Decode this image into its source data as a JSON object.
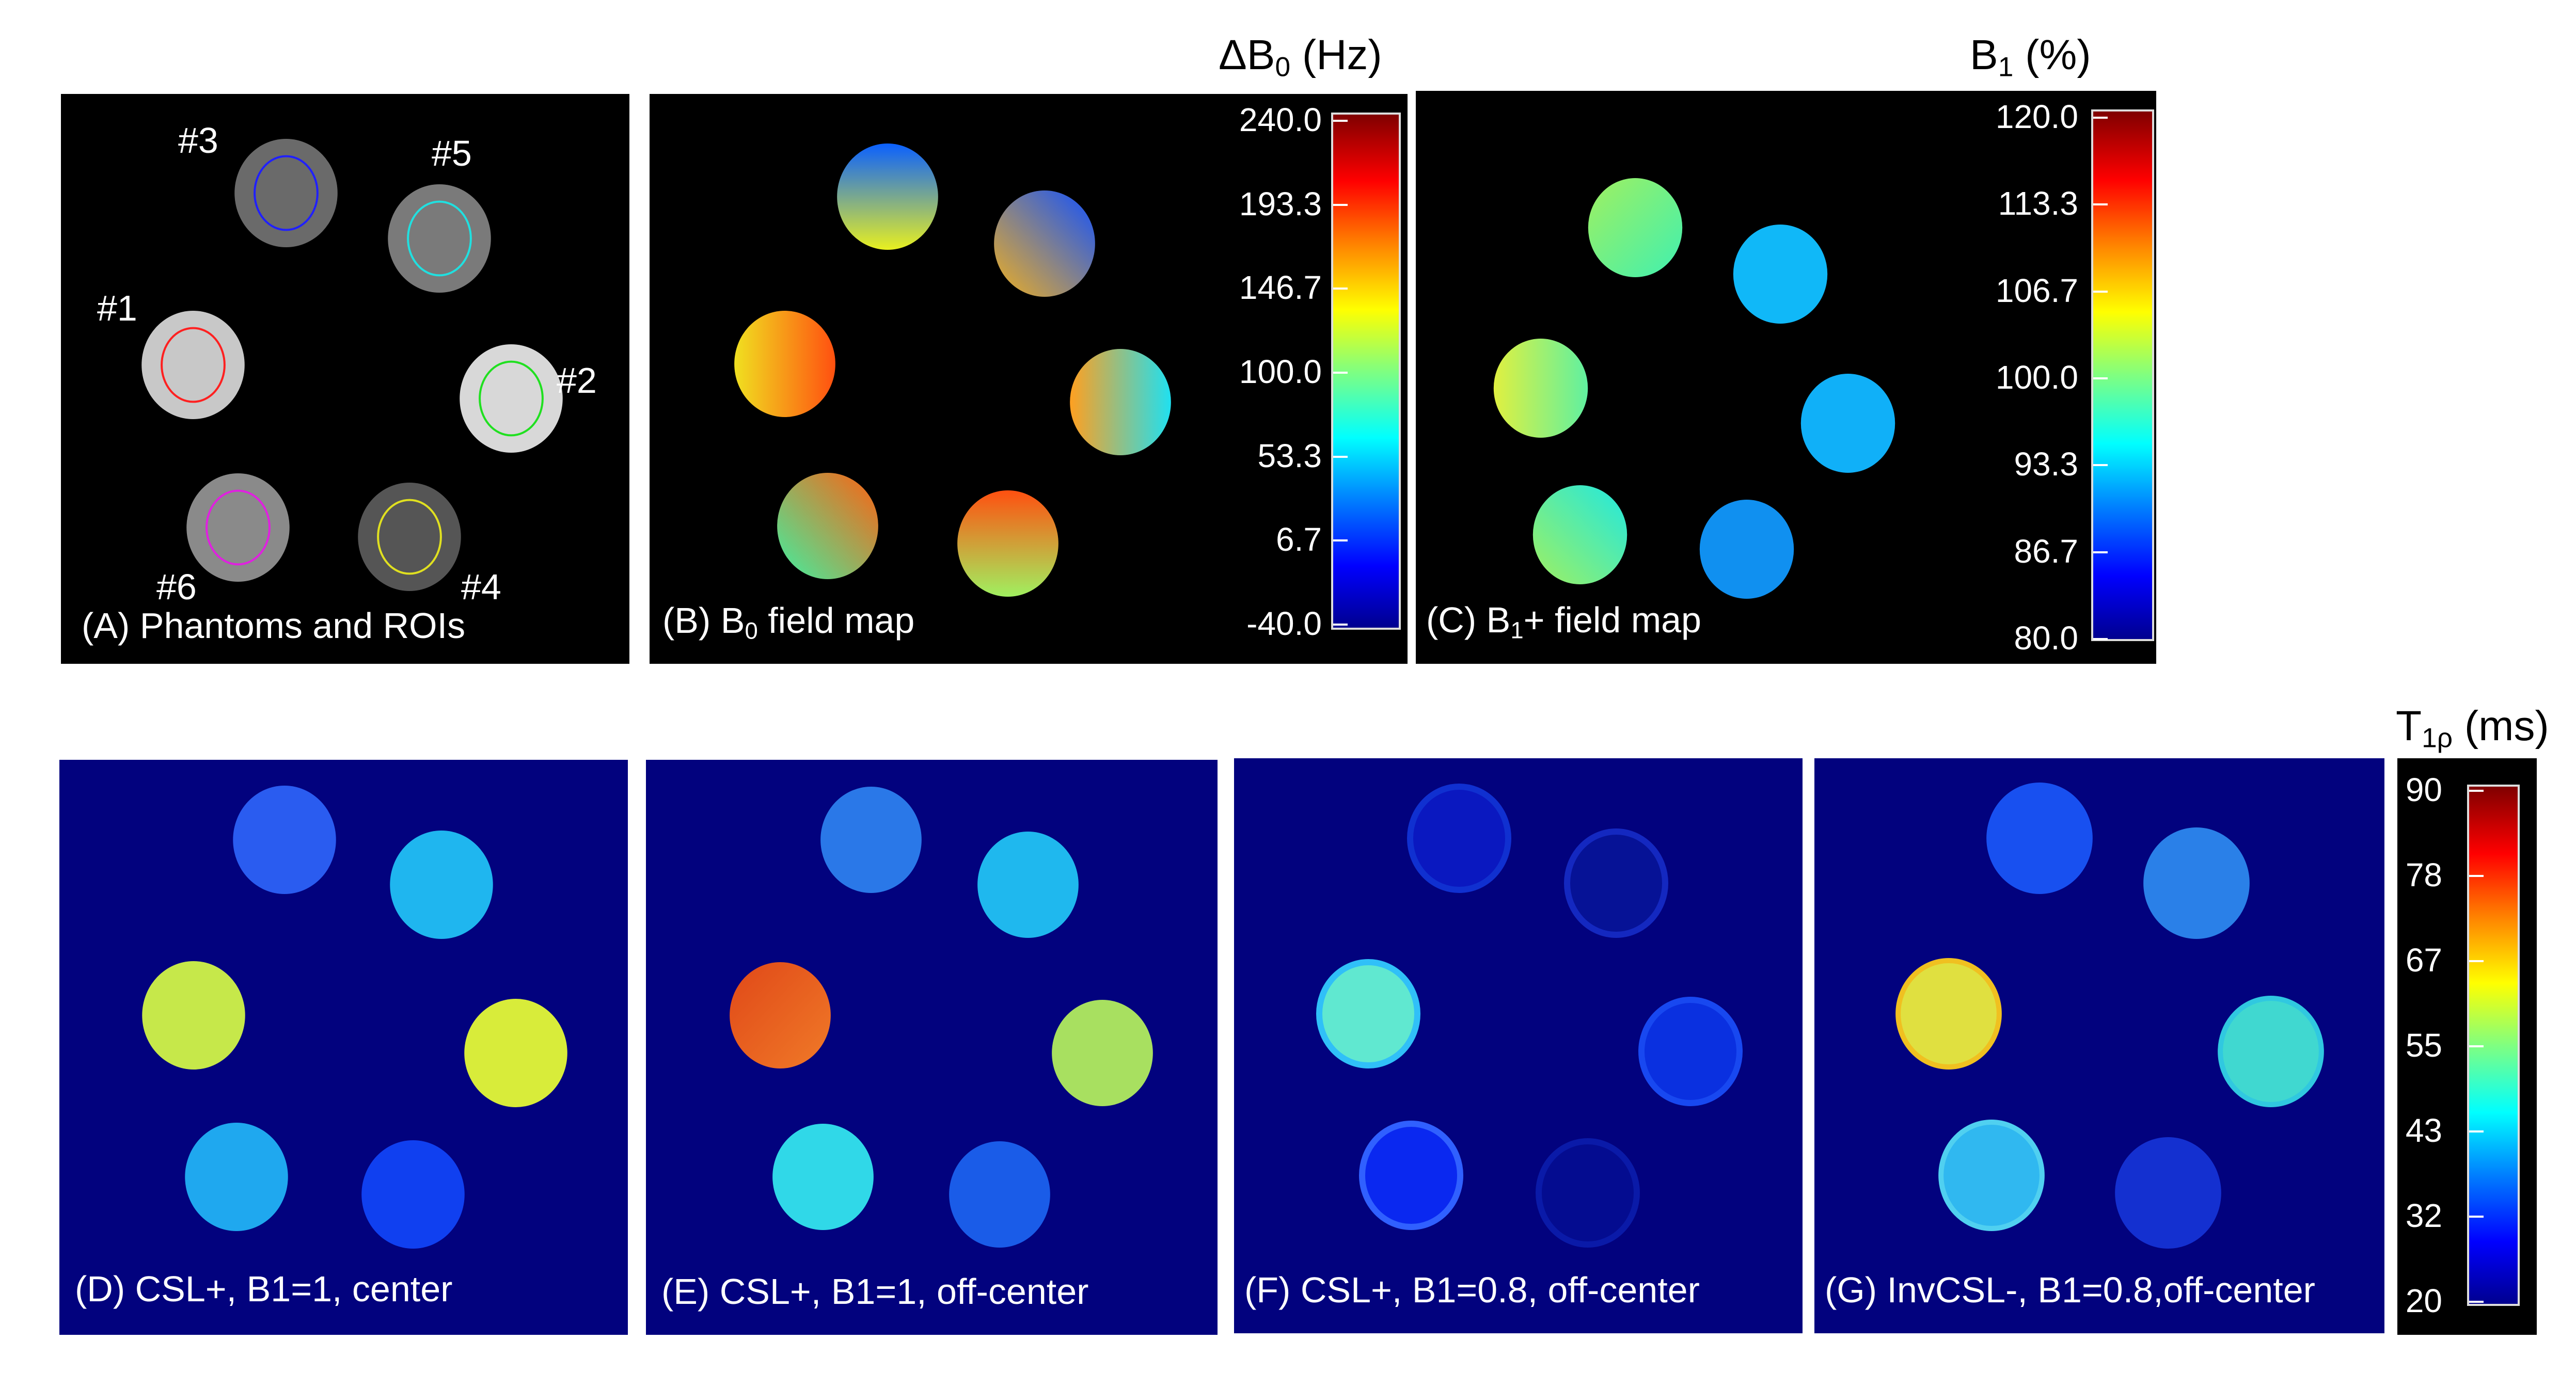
{
  "panels": {
    "a": {
      "label": "(A) Phantoms and ROIs",
      "rois": [
        "#3",
        "#5",
        "#1",
        "#2",
        "#6",
        "#4"
      ]
    },
    "b": {
      "label_pre": "(B) B",
      "label_sub": "0",
      "label_post": " field map"
    },
    "c": {
      "label_pre": "(C) B",
      "label_sub": "1",
      "label_post": "+ field map"
    },
    "d": {
      "label": "(D) CSL+, B1=1, center"
    },
    "e": {
      "label": "(E) CSL+, B1=1, off-center"
    },
    "f": {
      "label": "(F) CSL+, B1=0.8, off-center"
    },
    "g": {
      "label": "(G) InvCSL-, B1=0.8,off-center"
    }
  },
  "colorbars": {
    "b0": {
      "title_pre": "ΔB",
      "title_sub": "0",
      "title_post": " (Hz)",
      "ticks": [
        "240.0",
        "193.3",
        "146.7",
        "100.0",
        "53.3",
        "6.7",
        "-40.0"
      ],
      "range": [
        -40,
        240
      ],
      "colormap": "jet"
    },
    "b1": {
      "title_pre": "B",
      "title_sub": "1",
      "title_post": " (%)",
      "ticks": [
        "120.0",
        "113.3",
        "106.7",
        "100.0",
        "93.3",
        "86.7",
        "80.0"
      ],
      "range": [
        80,
        120
      ],
      "colormap": "jet"
    },
    "t1rho": {
      "title_pre": "T",
      "title_sub": "1ρ",
      "title_post": " (ms)",
      "ticks": [
        "90",
        "78",
        "67",
        "55",
        "43",
        "32",
        "20"
      ],
      "range": [
        20,
        90
      ],
      "colormap": "jet"
    }
  }
}
